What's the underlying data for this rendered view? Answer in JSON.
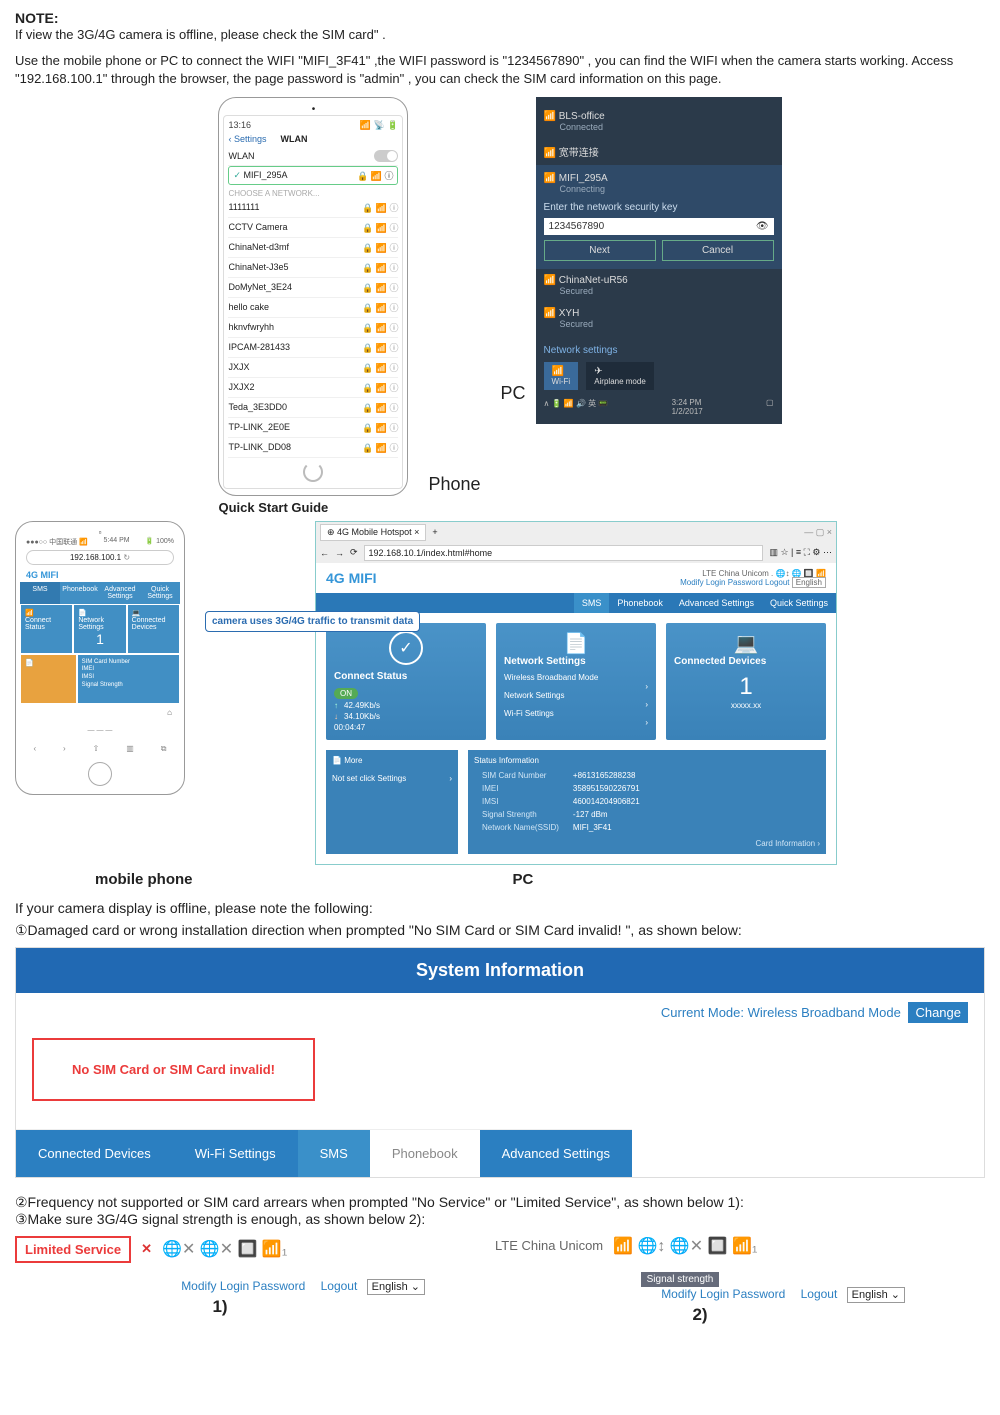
{
  "note": {
    "heading": "NOTE:",
    "line1": "If view the 3G/4G camera is offline, please check the SIM card\" .",
    "line2": "Use the mobile phone or PC to connect the WIFI \"MIFI_3F41\" ,the WIFI password is \"1234567890\" , you can find the WIFI when the camera starts working. Access \"192.168.100.1\" through the browser, the page password is \"admin\" , you can check the SIM card information on this page."
  },
  "phone": {
    "time": "13:16",
    "signal": "📶 📡 🔋",
    "back": "Settings",
    "title": "WLAN",
    "wlan_label": "WLAN",
    "connected": "MIFI_295A",
    "choose": "CHOOSE A NETWORK...",
    "lock_wifi_info": "🔒 📶 ⓘ",
    "networks": [
      "1111111",
      "CCTV Camera",
      "ChinaNet-d3mf",
      "ChinaNet-J3e5",
      "DoMyNet_3E24",
      "hello cake",
      "hknvfwryhh",
      "IPCAM-281433",
      "JXJX",
      "JXJX2",
      "Teda_3E3DD0",
      "TP-LINK_2E0E",
      "TP-LINK_DD08"
    ]
  },
  "pc": {
    "top1_name": "BLS-office",
    "top1_sub": "Connected",
    "top2_name": "宽带连接",
    "sel_name": "MIFI_295A",
    "sel_sub": "Connecting",
    "prompt": "Enter the network security key",
    "pwd": "1234567890",
    "btn_next": "Next",
    "btn_cancel": "Cancel",
    "n1": "ChinaNet-uR56",
    "n1s": "Secured",
    "n2": "XYH",
    "n2s": "Secured",
    "settings": "Network settings",
    "air": "Airplane mode",
    "wifi": "Wi-Fi",
    "clock": "3:24 PM",
    "date": "1/2/2017",
    "tray": "∧ 🔋 📶 🔊 英 📟"
  },
  "labels": {
    "phone": "Phone",
    "pc": "PC",
    "qsg": "Quick Start Guide",
    "mobile": "mobile phone",
    "pc2": "PC"
  },
  "callout": {
    "text": "camera uses 3G/4G traffic to transmit data"
  },
  "mob2": {
    "time": "5:44 PM",
    "carrier": "●●●○○ 中国联通 📶",
    "url": "192.168.100.1",
    "brand": "4G MIFI",
    "nav": [
      "SMS",
      "Phonebook",
      "Advanced Settings",
      "Quick Settings"
    ],
    "cells": [
      "Connect Status",
      "Network Settings",
      "Connected Devices",
      "",
      "",
      "1"
    ]
  },
  "mifi": {
    "tab": "4G Mobile Hotspot",
    "url": "192.168.10.1/index.html#home",
    "title": "4G MIFI",
    "carrier": "LTE  China Unicom",
    "hdr_links": "Modify Login Password   Logout",
    "lang": "English",
    "menu": [
      "SMS",
      "Phonebook",
      "Advanced Settings",
      "Quick Settings"
    ],
    "card1_title": "Connect Status",
    "card1_on": "ON",
    "card1_up": "42.49Kb/s",
    "card1_down": "34.10Kb/s",
    "card1_time": "00:04:47",
    "card2_title": "Network Settings",
    "card2_r1": "Wireless Broadband Mode",
    "card2_r2": "Network Settings",
    "card2_r3": "Wi-Fi Settings",
    "card3_title": "Connected Devices",
    "card3_count": "1",
    "card3_sub": "xxxxx.xx",
    "card2_icon": "📄",
    "card3_icon": "💻",
    "left1": "More",
    "left2": "Not set click Settings",
    "info_title": "Status Information",
    "rows": [
      [
        "SIM Card Number",
        "+8613165288238"
      ],
      [
        "IMEI",
        "358951590226791"
      ],
      [
        "IMSI",
        "460014204906821"
      ],
      [
        "Signal Strength",
        "-127 dBm"
      ],
      [
        "Network Name(SSID)",
        "MIFI_3F41"
      ]
    ],
    "card_info": "Card Information"
  },
  "offline": {
    "intro": "If your camera display is offline, please note the following:",
    "p1": "①Damaged card or wrong installation direction when prompted \"No SIM Card or SIM Card invalid! \", as shown below:",
    "p2": "②Frequency not supported or SIM card arrears when prompted \"No Service\" or \"Limited Service\", as shown below 1):",
    "p3": "③Make sure 3G/4G signal strength is enough, as shown below 2):"
  },
  "sysinfo": {
    "title": "System Information",
    "mode_label": "Current Mode:",
    "mode_val": "Wireless Broadband Mode",
    "change": "Change",
    "nosim": "No SIM Card or SIM Card invalid!",
    "tabs": [
      "Connected Devices",
      "Wi-Fi Settings",
      "SMS",
      "Phonebook",
      "Advanced Settings"
    ]
  },
  "sig": {
    "limited": "Limited Service",
    "x": "✕",
    "lte": "LTE  China Unicom",
    "sigtag": "Signal strength",
    "modify": "Modify Login Password",
    "logout": "Logout",
    "lang": "English ⌄",
    "l1": "1)",
    "l2": "2)",
    "icons": "🌐✕  🌐✕  🔲  📶₁",
    "icons2": "📶  🌐↕  🌐✕  🔲  📶₁"
  }
}
